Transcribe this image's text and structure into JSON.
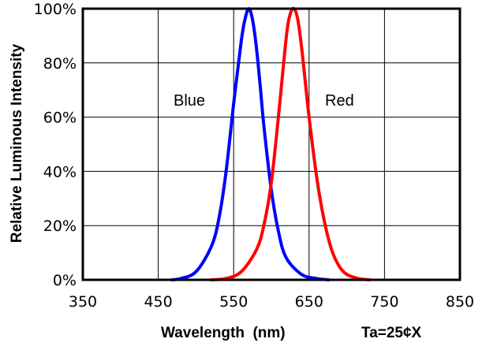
{
  "chart_data": {
    "type": "line",
    "title": "",
    "xlabel": "Wavelength  (nm)",
    "xlabel_note": "Ta=25¢X",
    "ylabel": "Relative Luminous Intensity",
    "xlim": [
      350,
      850
    ],
    "ylim": [
      0,
      100
    ],
    "x_ticks": [
      350,
      450,
      550,
      650,
      750,
      850
    ],
    "x_tick_labels": [
      "350",
      "450",
      "550",
      "650",
      "750",
      "850"
    ],
    "y_ticks": [
      0,
      20,
      40,
      60,
      80,
      100
    ],
    "y_tick_labels": [
      "0%",
      "20%",
      "40%",
      "60%",
      "80%",
      "100%"
    ],
    "grid": true,
    "series": [
      {
        "name": "Blue",
        "color": "#0000ff",
        "x": [
          468,
          480,
          500,
          520,
          530,
          540,
          550,
          560,
          565,
          570,
          575,
          580,
          585,
          590,
          600,
          610,
          620,
          640,
          660,
          676
        ],
        "y": [
          0,
          0.5,
          3,
          12,
          22,
          40,
          65,
          88,
          96,
          100,
          96,
          86,
          72,
          57,
          33,
          17,
          8,
          2,
          0.5,
          0
        ]
      },
      {
        "name": "Red",
        "color": "#ff0000",
        "x": [
          520,
          540,
          560,
          580,
          590,
          600,
          610,
          620,
          625,
          630,
          635,
          640,
          645,
          650,
          660,
          670,
          680,
          690,
          700,
          715,
          730
        ],
        "y": [
          0,
          0.5,
          3,
          11,
          20,
          36,
          62,
          90,
          98,
          100,
          96,
          86,
          73,
          60,
          38,
          22,
          11,
          5,
          2,
          0.5,
          0
        ]
      }
    ]
  }
}
